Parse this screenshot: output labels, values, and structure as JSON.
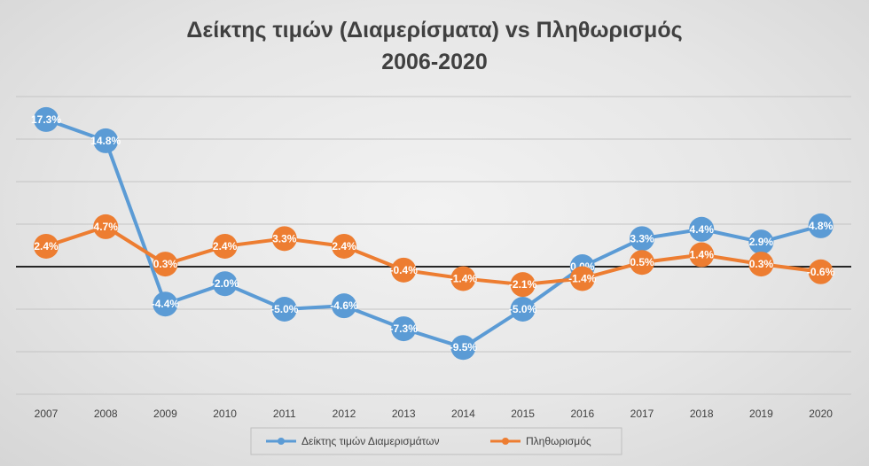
{
  "chart_data": {
    "type": "line",
    "title": "Δείκτης τιμών (Διαμερίσματα) vs Πληθωρισμός",
    "subtitle": "2006-2020",
    "categories": [
      "2007",
      "2008",
      "2009",
      "2010",
      "2011",
      "2012",
      "2013",
      "2014",
      "2015",
      "2016",
      "2017",
      "2018",
      "2019",
      "2020"
    ],
    "series": [
      {
        "name": "Δείκτης τιμών Διαμερισμάτων",
        "color": "#5b9bd5",
        "values": [
          17.3,
          14.8,
          -4.4,
          -2.0,
          -5.0,
          -4.6,
          -7.3,
          -9.5,
          -5.0,
          0.0,
          3.3,
          4.4,
          2.9,
          4.8
        ],
        "labels": [
          "17.3%",
          "14.8%",
          "-4.4%",
          "-2.0%",
          "-5.0%",
          "-4.6%",
          "-7.3%",
          "-9.5%",
          "-5.0%",
          "0.0%",
          "3.3%",
          "4.4%",
          "2.9%",
          "4.8%"
        ]
      },
      {
        "name": "Πληθωρισμός",
        "color": "#ed7d31",
        "values": [
          2.4,
          4.7,
          0.3,
          2.4,
          3.3,
          2.4,
          -0.4,
          -1.4,
          -2.1,
          -1.4,
          0.5,
          1.4,
          0.3,
          -0.6
        ],
        "labels": [
          "2.4%",
          "4.7%",
          "0.3%",
          "2.4%",
          "3.3%",
          "2.4%",
          "-0.4%",
          "-1.4%",
          "-2.1%",
          "-1.4%",
          "0.5%",
          "1.4%",
          "0.3%",
          "-0.6%"
        ]
      }
    ],
    "ylim": [
      -15,
      20
    ],
    "ytick_step": 5,
    "grid": true,
    "yaxis_labels_shown": false,
    "legend": "bottom"
  }
}
